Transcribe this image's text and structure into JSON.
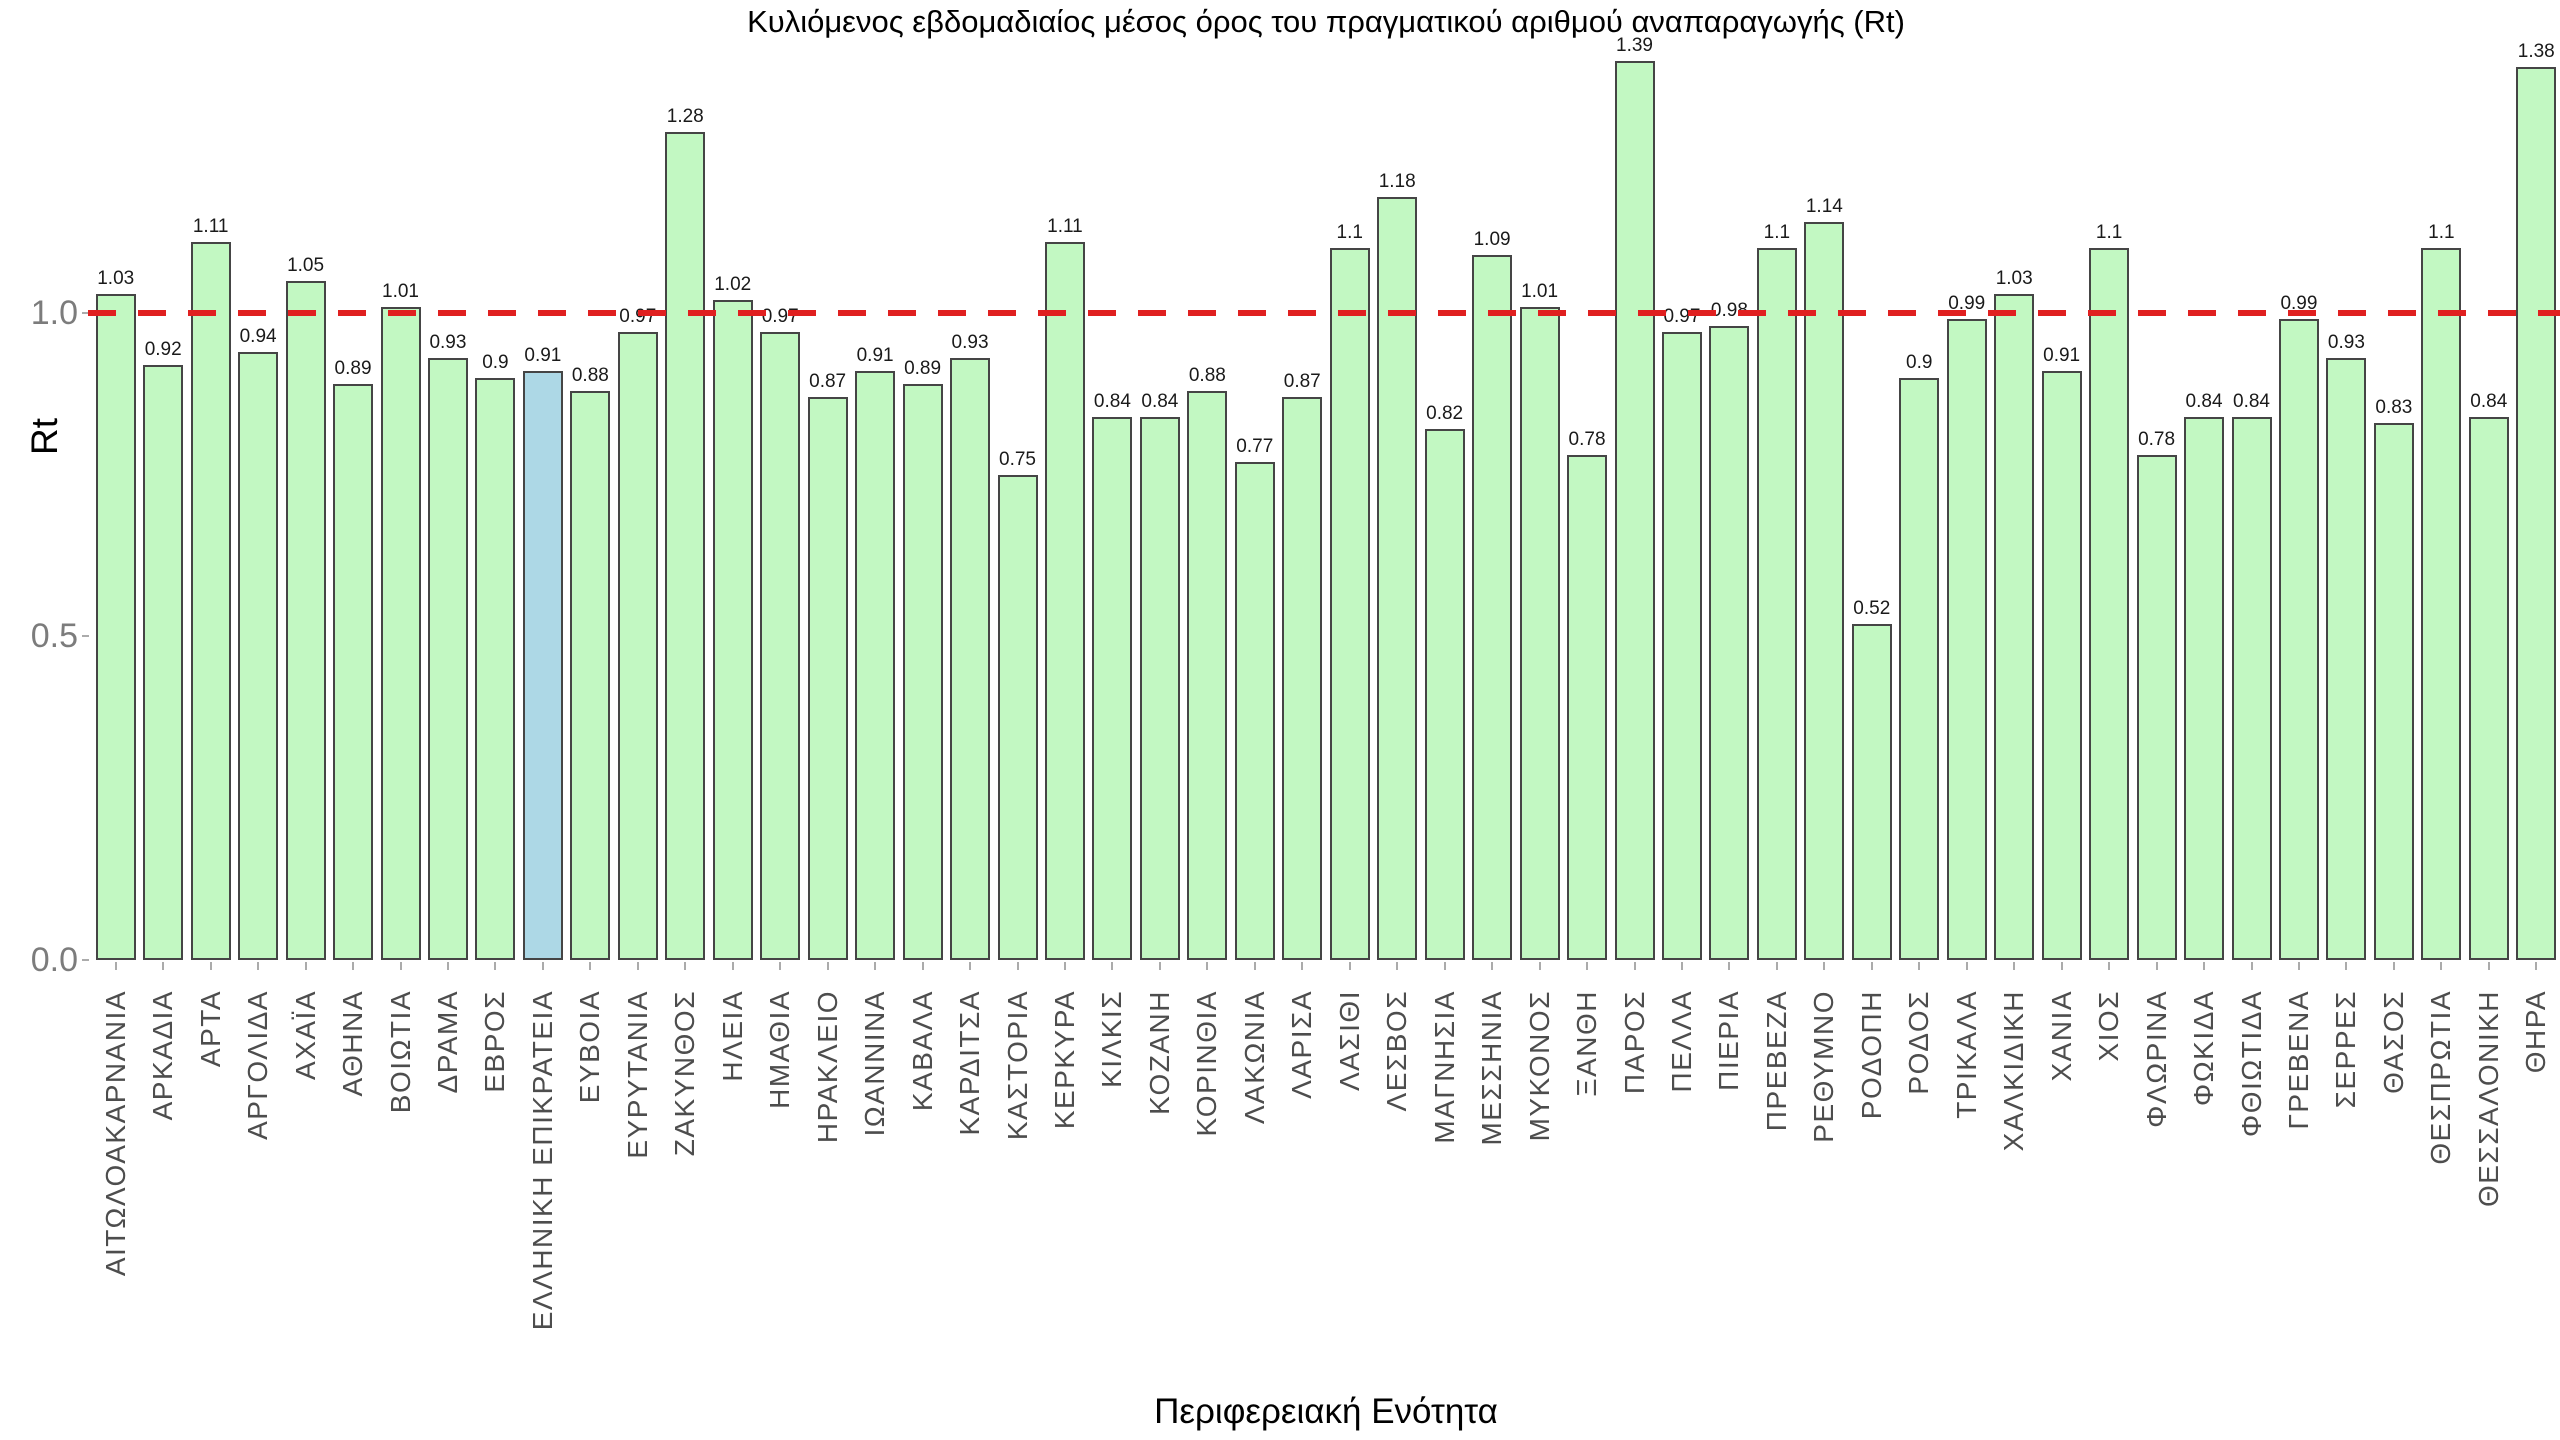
{
  "chart_data": {
    "type": "bar",
    "title": "Κυλιόμενος εβδομαδιαίος μέσος όρος του πραγματικού αριθμού αναπαραγωγής (Rt)",
    "xlabel": "Περιφερειακή Ενότητα",
    "ylabel": "Rt",
    "categories": [
      "ΑΙΤΩΛΟΑΚΑΡΝΑΝΙΑ",
      "ΑΡΚΑΔΙΑ",
      "ΑΡΤΑ",
      "ΑΡΓΟΛΙΔΑ",
      "ΑΧΑΪΑ",
      "ΑΘΗΝΑ",
      "ΒΟΙΩΤΙΑ",
      "ΔΡΑΜΑ",
      "ΕΒΡΟΣ",
      "ΕΛΛΗΝΙΚΗ ΕΠΙΚΡΑΤΕΙΑ",
      "ΕΥΒΟΙΑ",
      "ΕΥΡΥΤΑΝΙΑ",
      "ΖΑΚΥΝΘΟΣ",
      "ΗΛΕΙΑ",
      "ΗΜΑΘΙΑ",
      "ΗΡΑΚΛΕΙΟ",
      "ΙΩΑΝΝΙΝΑ",
      "ΚΑΒΑΛΑ",
      "ΚΑΡΔΙΤΣΑ",
      "ΚΑΣΤΟΡΙΑ",
      "ΚΕΡΚΥΡΑ",
      "ΚΙΛΚΙΣ",
      "ΚΟΖΑΝΗ",
      "ΚΟΡΙΝΘΙΑ",
      "ΛΑΚΩΝΙΑ",
      "ΛΑΡΙΣΑ",
      "ΛΑΣΙΘΙ",
      "ΛΕΣΒΟΣ",
      "ΜΑΓΝΗΣΙΑ",
      "ΜΕΣΣΗΝΙΑ",
      "ΜΥΚΟΝΟΣ",
      "ΞΑΝΘΗ",
      "ΠΑΡΟΣ",
      "ΠΕΛΛΑ",
      "ΠΙΕΡΙΑ",
      "ΠΡΕΒΕΖΑ",
      "ΡΕΘΥΜΝΟ",
      "ΡΟΔΟΠΗ",
      "ΡΟΔΟΣ",
      "ΤΡΙΚΑΛΑ",
      "ΧΑΛΚΙΔΙΚΗ",
      "ΧΑΝΙΑ",
      "ΧΙΟΣ",
      "ΦΛΩΡΙΝΑ",
      "ΦΩΚΙΔΑ",
      "ΦΘΙΩΤΙΔΑ",
      "ΓΡΕΒΕΝΑ",
      "ΣΕΡΡΕΣ",
      "ΘΑΣΟΣ",
      "ΘΕΣΠΡΩΤΙΑ",
      "ΘΕΣΣΑΛΟΝΙΚΗ",
      "ΘΗΡΑ"
    ],
    "values": [
      1.03,
      0.92,
      1.11,
      0.94,
      1.05,
      0.89,
      1.01,
      0.93,
      0.9,
      0.91,
      0.88,
      0.97,
      1.28,
      1.02,
      0.97,
      0.87,
      0.91,
      0.89,
      0.93,
      0.75,
      1.11,
      0.84,
      0.84,
      0.88,
      0.77,
      0.87,
      1.1,
      1.18,
      0.82,
      1.09,
      1.01,
      0.78,
      1.39,
      0.97,
      0.98,
      1.1,
      1.14,
      0.52,
      0.9,
      0.99,
      1.03,
      0.91,
      1.1,
      0.78,
      0.84,
      0.84,
      0.99,
      0.93,
      0.83,
      1.1,
      0.84,
      1.38
    ],
    "highlight_category": "ΕΛΛΗΝΙΚΗ ΕΠΙΚΡΑΤΕΙΑ",
    "highlight_index": 9,
    "yticks": [
      {
        "value": 0.0,
        "label": "0.0"
      },
      {
        "value": 0.5,
        "label": "0.5"
      },
      {
        "value": 1.0,
        "label": "1.0"
      }
    ],
    "ylim": [
      0,
      1.45
    ],
    "reference_line": {
      "value": 1.0,
      "style": "dashed",
      "color": "#e02020"
    },
    "grid": false,
    "legend": false,
    "colors": {
      "bar_fill": "#c2f8c2",
      "bar_highlight_fill": "#add8e6",
      "bar_edge": "#454545",
      "reference_line": "#e02020",
      "ytick_label": "#7c7c7c",
      "xtick_label": "#4d4d4d",
      "value_label": "#1a1a1a",
      "background": "#ffffff"
    }
  }
}
